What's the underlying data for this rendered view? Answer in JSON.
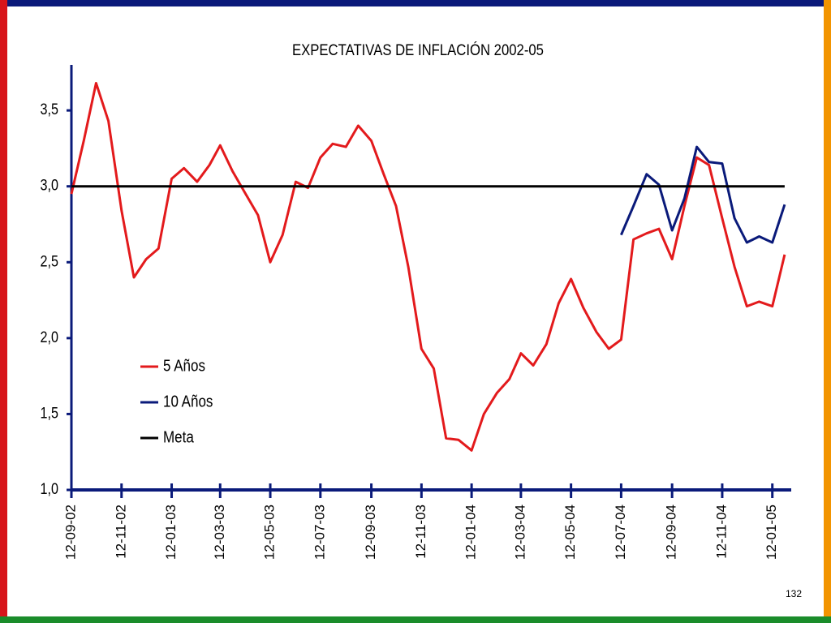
{
  "chart_data": {
    "type": "line",
    "title": "EXPECTATIVAS DE INFLACIÓN 2002-05",
    "page_number": "132",
    "x": [
      "12-09-02",
      "27-09-02",
      "12-10-02",
      "27-10-02",
      "12-11-02",
      "27-11-02",
      "12-12-02",
      "27-12-02",
      "12-01-03",
      "27-01-03",
      "12-02-03",
      "27-02-03",
      "12-03-03",
      "27-03-03",
      "12-04-03",
      "27-04-03",
      "12-05-03",
      "27-05-03",
      "12-06-03",
      "27-06-03",
      "12-07-03",
      "27-07-03",
      "12-08-03",
      "27-08-03",
      "12-09-03",
      "27-09-03",
      "12-10-03",
      "27-10-03",
      "12-11-03",
      "27-11-03",
      "12-12-03",
      "27-12-03",
      "12-01-04",
      "27-01-04",
      "12-02-04",
      "27-02-04",
      "12-03-04",
      "27-03-04",
      "12-04-04",
      "27-04-04",
      "12-05-04",
      "27-05-04",
      "12-06-04",
      "27-06-04",
      "12-07-04",
      "27-07-04",
      "12-08-04",
      "27-08-04",
      "12-09-04",
      "27-09-04",
      "12-10-04",
      "27-10-04",
      "12-11-04",
      "27-11-04",
      "12-12-04",
      "27-12-04",
      "12-01-05",
      "27-01-05"
    ],
    "series": [
      {
        "name": "5 Años",
        "color": "#e31a1c",
        "values": [
          2.95,
          3.3,
          3.68,
          3.43,
          2.84,
          2.4,
          2.52,
          2.59,
          3.05,
          3.12,
          3.03,
          3.14,
          3.27,
          3.1,
          2.95,
          2.81,
          2.5,
          2.68,
          3.03,
          2.99,
          3.19,
          3.28,
          3.26,
          3.4,
          3.3,
          3.08,
          2.87,
          2.47,
          1.93,
          1.8,
          1.34,
          1.33,
          1.26,
          1.5,
          1.64,
          1.73,
          1.9,
          1.82,
          1.96,
          2.23,
          2.39,
          2.2,
          2.04,
          1.93,
          1.99,
          2.65,
          2.69,
          2.72,
          2.52,
          2.87,
          3.19,
          3.14,
          2.79,
          2.47,
          2.21,
          2.24,
          2.21,
          2.55
        ]
      },
      {
        "name": "10 Años",
        "color": "#0a1a7a",
        "values": [
          null,
          null,
          null,
          null,
          null,
          null,
          null,
          null,
          null,
          null,
          null,
          null,
          null,
          null,
          null,
          null,
          null,
          null,
          null,
          null,
          null,
          null,
          null,
          null,
          null,
          null,
          null,
          null,
          null,
          null,
          null,
          null,
          null,
          null,
          null,
          null,
          null,
          null,
          null,
          null,
          null,
          null,
          null,
          null,
          2.68,
          2.87,
          3.08,
          3.01,
          2.71,
          2.92,
          3.26,
          3.16,
          3.15,
          2.79,
          2.63,
          2.67,
          2.63,
          2.88
        ]
      },
      {
        "name": "Meta",
        "color": "#000000",
        "values": [
          3,
          3,
          3,
          3,
          3,
          3,
          3,
          3,
          3,
          3,
          3,
          3,
          3,
          3,
          3,
          3,
          3,
          3,
          3,
          3,
          3,
          3,
          3,
          3,
          3,
          3,
          3,
          3,
          3,
          3,
          3,
          3,
          3,
          3,
          3,
          3,
          3,
          3,
          3,
          3,
          3,
          3,
          3,
          3,
          3,
          3,
          3,
          3,
          3,
          3,
          3,
          3,
          3,
          3,
          3,
          3,
          3,
          3
        ]
      }
    ],
    "xlim": [
      "12-09-02",
      "04-02-05"
    ],
    "xticks": [
      "12-09-02",
      "12-11-02",
      "12-01-03",
      "12-03-03",
      "12-05-03",
      "12-07-03",
      "12-09-03",
      "12-11-03",
      "12-01-04",
      "12-03-04",
      "12-05-04",
      "12-07-04",
      "12-09-04",
      "12-11-04",
      "12-01-05"
    ],
    "ylim": [
      1,
      3.8
    ],
    "yticks": [
      {
        "value": 1,
        "label": "1,0"
      },
      {
        "value": 1.5,
        "label": "1,5"
      },
      {
        "value": 2,
        "label": "2,0"
      },
      {
        "value": 2.5,
        "label": "2,5"
      },
      {
        "value": 3,
        "label": "3,0"
      },
      {
        "value": 3.5,
        "label": "3,5"
      }
    ],
    "legend": "left"
  }
}
